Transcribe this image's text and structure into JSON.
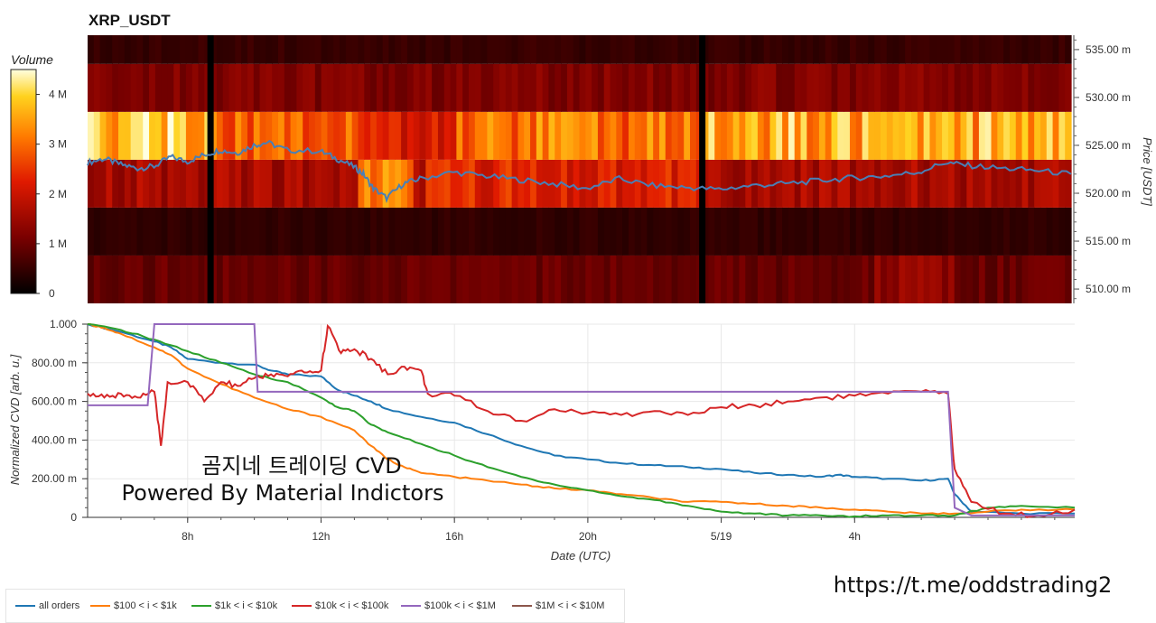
{
  "chart_data": [
    {
      "type": "heatmap",
      "title": "XRP_USDT",
      "ylabel": "Price [USDT]",
      "colorbar_title": "Volume",
      "colorbar_ticks": [
        "0",
        "1 M",
        "2 M",
        "3 M",
        "4 M"
      ],
      "colorbar_max": 4500000,
      "y_ticks": [
        "510.00 m",
        "515.00 m",
        "520.00 m",
        "525.00 m",
        "530.00 m",
        "535.00 m"
      ],
      "ylim": [
        0.5085,
        0.5365
      ],
      "price_bands": [
        0.5085,
        0.5135,
        0.5185,
        0.5235,
        0.5285,
        0.5335,
        0.5365
      ],
      "x_range_hours": [
        5.0,
        34.6
      ],
      "gaps_hours": [
        8.7,
        23.5
      ],
      "band_volume_levels": [
        0.95,
        0.45,
        1.9,
        3.6,
        1.2,
        0.5
      ],
      "price_line_color": "#4a7fb5",
      "price_line": [
        [
          5.0,
          0.5232
        ],
        [
          5.5,
          0.5236
        ],
        [
          6.0,
          0.523
        ],
        [
          6.5,
          0.5226
        ],
        [
          7.0,
          0.5228
        ],
        [
          7.5,
          0.5238
        ],
        [
          8.0,
          0.5233
        ],
        [
          8.5,
          0.524
        ],
        [
          9.0,
          0.5245
        ],
        [
          9.5,
          0.5242
        ],
        [
          10.0,
          0.525
        ],
        [
          10.4,
          0.5253
        ],
        [
          11.0,
          0.5245
        ],
        [
          12.0,
          0.5244
        ],
        [
          12.5,
          0.5236
        ],
        [
          13.0,
          0.5228
        ],
        [
          13.3,
          0.522
        ],
        [
          13.6,
          0.5205
        ],
        [
          14.0,
          0.5195
        ],
        [
          14.5,
          0.521
        ],
        [
          15.0,
          0.5215
        ],
        [
          16.0,
          0.5222
        ],
        [
          17.0,
          0.5218
        ],
        [
          18.0,
          0.5214
        ],
        [
          19.0,
          0.521
        ],
        [
          20.0,
          0.5205
        ],
        [
          21.0,
          0.5215
        ],
        [
          22.0,
          0.5208
        ],
        [
          23.0,
          0.5206
        ],
        [
          24.0,
          0.5204
        ],
        [
          25.0,
          0.5208
        ],
        [
          26.0,
          0.521
        ],
        [
          27.0,
          0.5213
        ],
        [
          28.0,
          0.5216
        ],
        [
          29.0,
          0.5218
        ],
        [
          30.0,
          0.5222
        ],
        [
          30.8,
          0.5232
        ],
        [
          31.5,
          0.5229
        ],
        [
          32.5,
          0.5226
        ],
        [
          33.5,
          0.5224
        ],
        [
          34.6,
          0.522
        ]
      ]
    },
    {
      "type": "line",
      "xlabel": "Date (UTC)",
      "ylabel": "Normalized CVD [arb. u.]",
      "ylim": [
        0,
        1
      ],
      "xlim": [
        5.0,
        34.6
      ],
      "x_ticks": [
        {
          "hour": 8,
          "label": "8h"
        },
        {
          "hour": 12,
          "label": "12h"
        },
        {
          "hour": 16,
          "label": "16h"
        },
        {
          "hour": 20,
          "label": "20h"
        },
        {
          "hour": 24,
          "label": "5/19"
        },
        {
          "hour": 28,
          "label": "4h"
        }
      ],
      "y_ticks": [
        {
          "value": 0,
          "label": "0"
        },
        {
          "value": 0.2,
          "label": "200.00 m"
        },
        {
          "value": 0.4,
          "label": "400.00 m"
        },
        {
          "value": 0.6,
          "label": "600.00 m"
        },
        {
          "value": 0.8,
          "label": "800.00 m"
        },
        {
          "value": 1.0,
          "label": "1.000"
        }
      ],
      "legend_placement": "bottom",
      "series": [
        {
          "name": "all orders",
          "color": "#1f77b4",
          "points": [
            [
              5.0,
              1.0
            ],
            [
              6.0,
              0.96
            ],
            [
              7.0,
              0.91
            ],
            [
              7.5,
              0.88
            ],
            [
              8.0,
              0.82
            ],
            [
              9.0,
              0.8
            ],
            [
              10.0,
              0.79
            ],
            [
              10.5,
              0.76
            ],
            [
              11.0,
              0.74
            ],
            [
              12.0,
              0.73
            ],
            [
              12.5,
              0.66
            ],
            [
              13.0,
              0.63
            ],
            [
              13.5,
              0.6
            ],
            [
              14.0,
              0.56
            ],
            [
              15.0,
              0.52
            ],
            [
              16.0,
              0.49
            ],
            [
              17.0,
              0.43
            ],
            [
              18.0,
              0.37
            ],
            [
              19.0,
              0.32
            ],
            [
              20.0,
              0.3
            ],
            [
              21.0,
              0.28
            ],
            [
              22.0,
              0.27
            ],
            [
              23.0,
              0.26
            ],
            [
              24.0,
              0.25
            ],
            [
              25.0,
              0.23
            ],
            [
              26.0,
              0.22
            ],
            [
              27.0,
              0.21
            ],
            [
              27.5,
              0.22
            ],
            [
              28.0,
              0.21
            ],
            [
              29.0,
              0.2
            ],
            [
              30.0,
              0.19
            ],
            [
              30.8,
              0.2
            ],
            [
              31.0,
              0.12
            ],
            [
              31.5,
              0.03
            ],
            [
              33.0,
              0.02
            ],
            [
              34.6,
              0.02
            ]
          ]
        },
        {
          "name": "$100 < i < $1k",
          "color": "#ff7f0e",
          "points": [
            [
              5.0,
              1.0
            ],
            [
              5.5,
              0.98
            ],
            [
              6.0,
              0.95
            ],
            [
              7.0,
              0.88
            ],
            [
              7.5,
              0.84
            ],
            [
              8.0,
              0.77
            ],
            [
              9.0,
              0.69
            ],
            [
              10.0,
              0.62
            ],
            [
              11.0,
              0.56
            ],
            [
              12.0,
              0.52
            ],
            [
              13.0,
              0.45
            ],
            [
              13.5,
              0.37
            ],
            [
              14.0,
              0.3
            ],
            [
              14.5,
              0.26
            ],
            [
              15.0,
              0.23
            ],
            [
              16.0,
              0.21
            ],
            [
              17.0,
              0.19
            ],
            [
              18.0,
              0.17
            ],
            [
              19.0,
              0.15
            ],
            [
              20.0,
              0.14
            ],
            [
              21.0,
              0.12
            ],
            [
              22.0,
              0.1
            ],
            [
              23.0,
              0.08
            ],
            [
              24.0,
              0.08
            ],
            [
              25.0,
              0.07
            ],
            [
              26.0,
              0.06
            ],
            [
              27.0,
              0.05
            ],
            [
              28.0,
              0.04
            ],
            [
              29.0,
              0.03
            ],
            [
              30.0,
              0.02
            ],
            [
              31.0,
              0.02
            ],
            [
              32.0,
              0.03
            ],
            [
              33.0,
              0.04
            ],
            [
              34.6,
              0.04
            ]
          ]
        },
        {
          "name": "$1k < i < $10k",
          "color": "#2ca02c",
          "points": [
            [
              5.0,
              1.0
            ],
            [
              6.0,
              0.97
            ],
            [
              7.0,
              0.92
            ],
            [
              8.0,
              0.86
            ],
            [
              9.0,
              0.8
            ],
            [
              10.0,
              0.74
            ],
            [
              11.0,
              0.7
            ],
            [
              12.0,
              0.62
            ],
            [
              12.5,
              0.57
            ],
            [
              13.0,
              0.55
            ],
            [
              13.5,
              0.48
            ],
            [
              14.0,
              0.44
            ],
            [
              15.0,
              0.38
            ],
            [
              16.0,
              0.32
            ],
            [
              17.0,
              0.26
            ],
            [
              18.0,
              0.21
            ],
            [
              19.0,
              0.17
            ],
            [
              20.0,
              0.14
            ],
            [
              21.0,
              0.11
            ],
            [
              22.0,
              0.09
            ],
            [
              23.0,
              0.06
            ],
            [
              24.0,
              0.03
            ],
            [
              25.0,
              0.02
            ],
            [
              26.0,
              0.01
            ],
            [
              27.0,
              0.01
            ],
            [
              28.0,
              0.005
            ],
            [
              29.0,
              0.01
            ],
            [
              30.0,
              0.01
            ],
            [
              31.0,
              0.01
            ],
            [
              32.0,
              0.05
            ],
            [
              33.0,
              0.06
            ],
            [
              34.6,
              0.05
            ]
          ]
        },
        {
          "name": "$10k < i < $100k",
          "color": "#d62728",
          "points": [
            [
              5.0,
              0.64
            ],
            [
              5.5,
              0.62
            ],
            [
              6.0,
              0.64
            ],
            [
              6.5,
              0.62
            ],
            [
              7.0,
              0.65
            ],
            [
              7.2,
              0.37
            ],
            [
              7.4,
              0.7
            ],
            [
              8.0,
              0.7
            ],
            [
              8.5,
              0.6
            ],
            [
              9.0,
              0.7
            ],
            [
              9.5,
              0.68
            ],
            [
              10.0,
              0.72
            ],
            [
              10.5,
              0.74
            ],
            [
              11.0,
              0.73
            ],
            [
              11.5,
              0.75
            ],
            [
              12.0,
              0.76
            ],
            [
              12.2,
              0.99
            ],
            [
              12.6,
              0.85
            ],
            [
              13.0,
              0.87
            ],
            [
              13.5,
              0.82
            ],
            [
              14.0,
              0.74
            ],
            [
              14.5,
              0.78
            ],
            [
              15.0,
              0.76
            ],
            [
              15.2,
              0.64
            ],
            [
              16.0,
              0.63
            ],
            [
              17.0,
              0.55
            ],
            [
              18.0,
              0.5
            ],
            [
              19.0,
              0.56
            ],
            [
              20.0,
              0.54
            ],
            [
              21.0,
              0.53
            ],
            [
              22.0,
              0.55
            ],
            [
              23.0,
              0.53
            ],
            [
              24.0,
              0.57
            ],
            [
              25.0,
              0.58
            ],
            [
              26.0,
              0.6
            ],
            [
              27.0,
              0.62
            ],
            [
              28.0,
              0.63
            ],
            [
              29.0,
              0.64
            ],
            [
              30.0,
              0.65
            ],
            [
              30.8,
              0.64
            ],
            [
              31.0,
              0.25
            ],
            [
              31.5,
              0.08
            ],
            [
              32.5,
              0.02
            ],
            [
              33.5,
              0.01
            ],
            [
              34.6,
              0.04
            ]
          ]
        },
        {
          "name": "$100k < i < $1M",
          "color": "#9467bd",
          "points": [
            [
              5.0,
              0.58
            ],
            [
              6.8,
              0.58
            ],
            [
              7.0,
              1.0
            ],
            [
              10.0,
              1.0
            ],
            [
              10.1,
              0.65
            ],
            [
              30.8,
              0.65
            ],
            [
              31.0,
              0.05
            ],
            [
              31.5,
              0.01
            ],
            [
              33.0,
              0.01
            ],
            [
              34.6,
              0.01
            ]
          ]
        },
        {
          "name": "$1M < i < $10M",
          "color": "#8c564b",
          "points": []
        }
      ]
    }
  ],
  "watermark": {
    "line1": "곰지네 트레이딩 CVD",
    "line2": "Powered By Material Indictors"
  },
  "url_text": "https://t.me/oddstrading2"
}
